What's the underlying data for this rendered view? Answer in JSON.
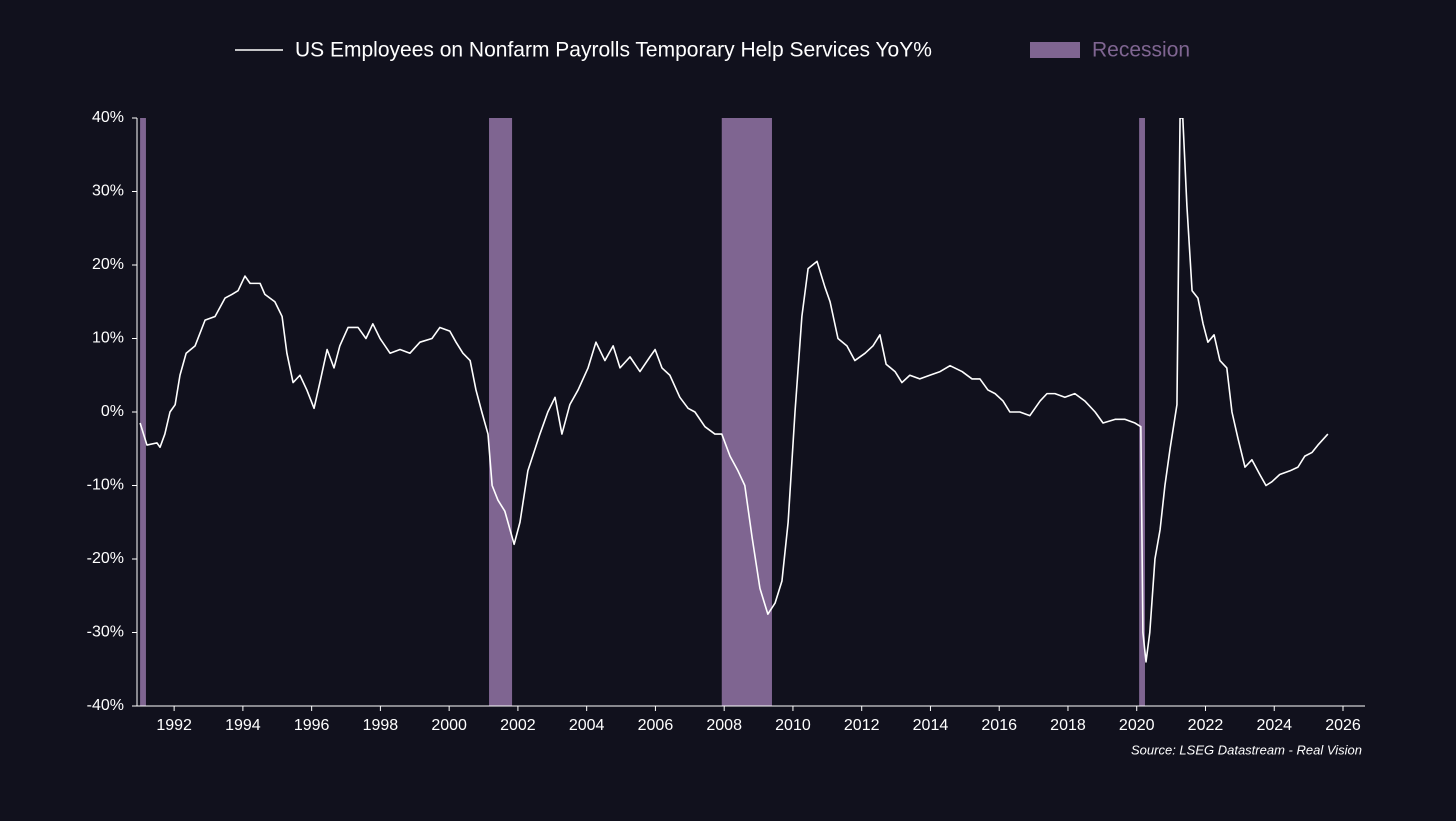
{
  "chart_data": {
    "type": "line",
    "source": "Source: LSEG Datastream - Real Vision",
    "recession_label": "Recession",
    "recession_color": "#7f6591",
    "recessions": [
      [
        1991.01,
        1991.18
      ],
      [
        2001.16,
        2001.83
      ],
      [
        2007.93,
        2009.39
      ],
      [
        2020.07,
        2020.24
      ]
    ],
    "x": [
      1991.01,
      1991.21,
      1991.5,
      1991.59,
      1991.73,
      1991.88,
      1992.03,
      1992.17,
      1992.35,
      1992.61,
      1992.9,
      1993.19,
      1993.48,
      1993.68,
      1993.86,
      1994.06,
      1994.21,
      1994.5,
      1994.64,
      1994.93,
      1995.14,
      1995.28,
      1995.46,
      1995.66,
      1995.86,
      1996.07,
      1996.24,
      1996.45,
      1996.65,
      1996.82,
      1997.06,
      1997.35,
      1997.58,
      1997.78,
      1997.99,
      1998.28,
      1998.57,
      1998.86,
      1999.15,
      1999.5,
      1999.73,
      2000.02,
      2000.2,
      2000.4,
      2000.61,
      2000.78,
      2000.95,
      2001.13,
      2001.25,
      2001.42,
      2001.62,
      2001.77,
      2001.89,
      2002.06,
      2002.29,
      2002.5,
      2002.64,
      2002.87,
      2003.08,
      2003.28,
      2003.51,
      2003.75,
      2004.04,
      2004.27,
      2004.53,
      2004.77,
      2004.97,
      2005.26,
      2005.55,
      2005.84,
      2005.99,
      2006.19,
      2006.42,
      2006.71,
      2006.95,
      2007.15,
      2007.44,
      2007.73,
      2007.93,
      2008.17,
      2008.4,
      2008.6,
      2008.81,
      2009.04,
      2009.27,
      2009.48,
      2009.68,
      2009.86,
      2010.06,
      2010.26,
      2010.44,
      2010.7,
      2010.93,
      2011.08,
      2011.31,
      2011.57,
      2011.8,
      2012.1,
      2012.33,
      2012.53,
      2012.71,
      2012.97,
      2013.17,
      2013.4,
      2013.69,
      2013.98,
      2014.28,
      2014.57,
      2014.92,
      2015.21,
      2015.44,
      2015.67,
      2015.88,
      2016.11,
      2016.31,
      2016.6,
      2016.89,
      2017.19,
      2017.39,
      2017.62,
      2017.91,
      2018.2,
      2018.49,
      2018.79,
      2019.02,
      2019.37,
      2019.66,
      2019.95,
      2020.12,
      2020.18,
      2020.27,
      2020.38,
      2020.53,
      2020.68,
      2020.82,
      2020.97,
      2021.17,
      2021.26,
      2021.34,
      2021.46,
      2021.61,
      2021.78,
      2021.93,
      2022.07,
      2022.25,
      2022.42,
      2022.62,
      2022.77,
      2022.94,
      2023.15,
      2023.35,
      2023.58,
      2023.76,
      2023.93,
      2024.16,
      2024.46,
      2024.69,
      2024.89,
      2025.1,
      2025.27,
      2025.56
    ],
    "series": [
      {
        "name": "US Employees on Nonfarm Payrolls Temporary Help Services YoY%",
        "color": "#ffffff",
        "values": [
          -1.5,
          -4.5,
          -4.2,
          -4.8,
          -3,
          0,
          1,
          5,
          8,
          9,
          12.5,
          13,
          15.5,
          16,
          16.5,
          18.5,
          17.5,
          17.5,
          16,
          15,
          13,
          8,
          4,
          5,
          3,
          0.5,
          4,
          8.5,
          6,
          9,
          11.5,
          11.5,
          10,
          12,
          10,
          8,
          8.5,
          8,
          9.5,
          10,
          11.5,
          11,
          9.5,
          8,
          7,
          3,
          0,
          -3,
          -10,
          -12,
          -13.5,
          -16,
          -18,
          -15,
          -8,
          -5,
          -3,
          0,
          2,
          -3,
          1,
          3,
          6,
          9.5,
          7,
          9,
          6,
          7.5,
          5.5,
          7.5,
          8.5,
          6,
          5,
          2,
          0.5,
          0,
          -2,
          -3,
          -3,
          -6,
          -8,
          -10,
          -17,
          -24,
          -27.5,
          -26,
          -23,
          -15,
          0,
          13,
          19.5,
          20.5,
          17,
          15,
          10,
          9,
          7,
          8,
          9,
          10.5,
          6.5,
          5.5,
          4,
          5,
          4.5,
          5,
          5.5,
          6.3,
          5.5,
          4.5,
          4.5,
          3,
          2.5,
          1.5,
          0,
          0,
          -0.5,
          1.5,
          2.5,
          2.5,
          2,
          2.5,
          1.5,
          0,
          -1.5,
          -1,
          -1,
          -1.5,
          -2,
          -30,
          -34,
          -30,
          -20,
          -16,
          -10,
          -5,
          1,
          40,
          40,
          28,
          16.5,
          15.5,
          12,
          9.5,
          10.5,
          7,
          6,
          0,
          -3.5,
          -7.5,
          -6.5,
          -8.5,
          -10,
          -9.5,
          -8.5,
          -8,
          -7.5,
          -6,
          -5.5,
          -4.5,
          -3
        ]
      }
    ],
    "xlim": [
      1990.92,
      2026.64
    ],
    "xticks": [
      1992,
      1994,
      1996,
      1998,
      2000,
      2002,
      2004,
      2006,
      2008,
      2010,
      2012,
      2014,
      2016,
      2018,
      2020,
      2022,
      2024,
      2026
    ],
    "ylim": [
      -40,
      40
    ],
    "yticks": [
      {
        "value": -40,
        "label": "-40%"
      },
      {
        "value": -30,
        "label": "-30%"
      },
      {
        "value": -20,
        "label": "-20%"
      },
      {
        "value": -10,
        "label": "-10%"
      },
      {
        "value": 0,
        "label": "0%"
      },
      {
        "value": 10,
        "label": "10%"
      },
      {
        "value": 20,
        "label": "20%"
      },
      {
        "value": 30,
        "label": "30%"
      },
      {
        "value": 40,
        "label": "40%"
      }
    ]
  }
}
